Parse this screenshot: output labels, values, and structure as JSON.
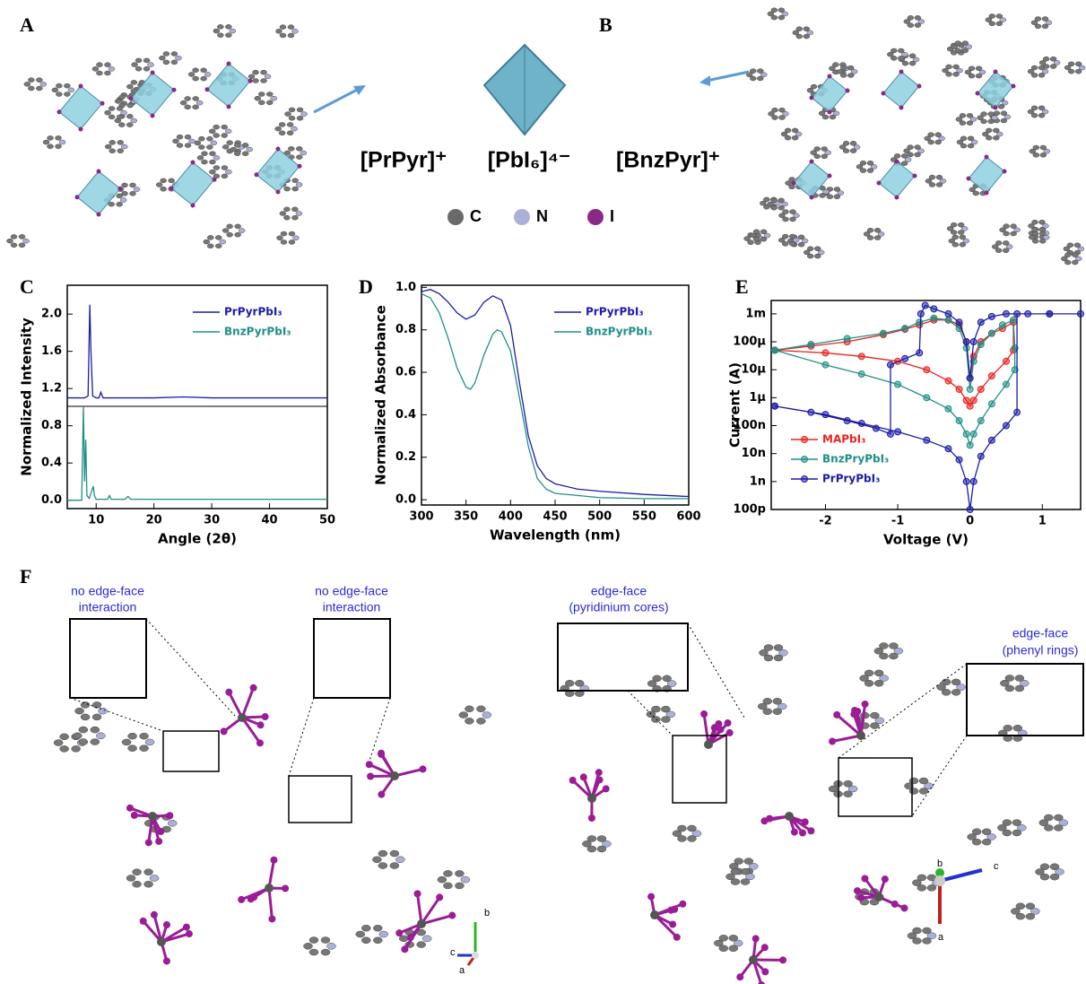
{
  "panel_labels": [
    "A",
    "B",
    "C",
    "D",
    "E",
    "F"
  ],
  "species": [
    "[PrPyr]⁺",
    "[PbI₆]⁴⁻",
    "[BnzPyr]⁺"
  ],
  "atom_legend": [
    "C",
    "N",
    "I"
  ],
  "annotations": [
    [
      "no edge-face",
      "interaction"
    ],
    [
      "no edge-face",
      "interaction"
    ],
    [
      "edge-face",
      "(pyridinium cores)"
    ],
    [
      "edge-face",
      "(phenyl rings)"
    ]
  ],
  "axis_triads": [
    [
      "b",
      "c",
      "a"
    ],
    [
      "b",
      "c",
      "a"
    ]
  ],
  "chart_data": [
    {
      "type": "line",
      "xlabel": "Angle (2θ)",
      "ylabel": "Normalized Intensity",
      "xlim": [
        5,
        50
      ],
      "ylim": [
        -0.09,
        2.31
      ],
      "xticks": [
        10,
        20,
        30,
        40,
        50
      ],
      "yticks": [
        {
          "value": 0,
          "label": "0.0"
        },
        0.4,
        0.8,
        1.2,
        1.6,
        {
          "value": 2,
          "label": "2.0"
        }
      ],
      "legend": "upper right",
      "series": [
        {
          "name": "PrPyrPbI₃",
          "color": "#1c1ca8",
          "x": [
            5,
            8,
            8.6,
            8.9,
            9.1,
            9.4,
            10,
            10.5,
            10.8,
            11.2,
            12,
            15,
            20,
            25,
            30,
            35,
            40,
            45,
            50
          ],
          "values": [
            1.1,
            1.1,
            1.12,
            2.1,
            1.6,
            1.12,
            1.1,
            1.1,
            1.16,
            1.1,
            1.1,
            1.1,
            1.1,
            1.11,
            1.1,
            1.1,
            1.1,
            1.1,
            1.1
          ]
        },
        {
          "name": "BnzPyrPbI₃",
          "color": "#1f8f86",
          "x": [
            5,
            7.5,
            7.8,
            8,
            8.2,
            8.4,
            8.8,
            9.5,
            9.7,
            10,
            12,
            12.3,
            12.6,
            15,
            15.5,
            16,
            20,
            25,
            30,
            35,
            40,
            45,
            50
          ],
          "values": [
            0,
            0,
            1.0,
            0.2,
            0.65,
            0.05,
            0.02,
            0.15,
            0.05,
            0.01,
            0.01,
            0.05,
            0.01,
            0.01,
            0.04,
            0.01,
            0.01,
            0.01,
            0.01,
            0.01,
            0.01,
            0.01,
            0.01
          ]
        }
      ]
    },
    {
      "type": "line",
      "xlabel": "Wavelength (nm)",
      "ylabel": "Normalized Absorbance",
      "xlim": [
        300,
        600
      ],
      "ylim": [
        -0.025,
        1.01
      ],
      "xticks": [
        300,
        350,
        400,
        450,
        500,
        550,
        600
      ],
      "yticks": [
        {
          "value": 0,
          "label": "0.0"
        },
        0.2,
        0.4,
        0.6,
        0.8,
        {
          "value": 1,
          "label": "1.0"
        }
      ],
      "legend": "upper right",
      "series": [
        {
          "name": "PrPyrPbI₃",
          "color": "#1c1ca8",
          "x": [
            300,
            310,
            320,
            330,
            340,
            350,
            360,
            370,
            380,
            390,
            400,
            410,
            420,
            430,
            440,
            450,
            475,
            500,
            550,
            600
          ],
          "values": [
            0.98,
            0.99,
            0.97,
            0.93,
            0.88,
            0.85,
            0.87,
            0.93,
            0.96,
            0.94,
            0.82,
            0.55,
            0.3,
            0.16,
            0.1,
            0.075,
            0.05,
            0.04,
            0.025,
            0.015
          ]
        },
        {
          "name": "BnzPyrPbI₃",
          "color": "#1f8f86",
          "x": [
            300,
            310,
            320,
            330,
            340,
            350,
            355,
            360,
            370,
            380,
            385,
            390,
            400,
            410,
            420,
            430,
            440,
            450,
            500,
            550,
            600
          ],
          "values": [
            0.97,
            0.95,
            0.88,
            0.76,
            0.62,
            0.53,
            0.52,
            0.55,
            0.68,
            0.78,
            0.8,
            0.79,
            0.7,
            0.48,
            0.25,
            0.1,
            0.05,
            0.03,
            0.01,
            0.005,
            0.005
          ]
        }
      ]
    },
    {
      "type": "line",
      "xlabel": "Voltage (V)",
      "ylabel": "Current (A)",
      "log_y": true,
      "markers": true,
      "xlim": [
        -2.75,
        1.53
      ],
      "ylim": [
        1e-10,
        0.003
      ],
      "xticks": [
        -2,
        -1,
        0,
        1
      ],
      "yticks": [
        {
          "value": 1e-10,
          "label": "100p"
        },
        {
          "value": 1e-09,
          "label": "1n"
        },
        {
          "value": 1e-08,
          "label": "10n"
        },
        {
          "value": 1e-07,
          "label": "100n"
        },
        {
          "value": 1e-06,
          "label": "1µ"
        },
        {
          "value": 1e-05,
          "label": "10µ"
        },
        {
          "value": 0.0001,
          "label": "100µ"
        },
        {
          "value": 0.001,
          "label": "1m"
        }
      ],
      "legend": "lower left",
      "series": [
        {
          "name": "MAPbI₃",
          "color": "#e8231f",
          "x": [
            -2.7,
            -2.2,
            -1.7,
            -1.2,
            -0.9,
            -0.7,
            -0.5,
            -0.3,
            -0.15,
            -0.05,
            0,
            0.05,
            0.15,
            0.3,
            0.45,
            0.6,
            0.6,
            0.5,
            0.3,
            0.15,
            0.05,
            0,
            -0.05,
            -0.15,
            -0.3,
            -0.6,
            -1,
            -1.5,
            -2,
            -2.7
          ],
          "values": [
            5e-05,
            7e-05,
            0.0001,
            0.00018,
            0.00028,
            0.0004,
            0.0006,
            0.0006,
            0.0004,
            0.0001,
            5e-06,
            3e-05,
            0.0001,
            0.0002,
            0.0003,
            0.0005,
            5e-05,
            2e-05,
            6e-06,
            2e-06,
            8e-07,
            5e-07,
            8e-07,
            2e-06,
            4e-06,
            1e-05,
            2e-05,
            3e-05,
            4e-05,
            5e-05
          ]
        },
        {
          "name": "BnzPryPbI₃",
          "color": "#1f8f86",
          "x": [
            -2.7,
            -2.2,
            -1.7,
            -1.2,
            -0.9,
            -0.7,
            -0.5,
            -0.3,
            -0.15,
            -0.05,
            0,
            0.05,
            0.15,
            0.3,
            0.45,
            0.6,
            0.62,
            0.62,
            0.5,
            0.3,
            0.15,
            0.05,
            0,
            -0.05,
            -0.15,
            -0.3,
            -0.6,
            -1,
            -1.5,
            -2,
            -2.7
          ],
          "values": [
            5e-05,
            8e-05,
            0.00013,
            0.0002,
            0.0003,
            0.0005,
            0.0007,
            0.0006,
            0.0003,
            6e-05,
            2e-06,
            2e-05,
            8e-05,
            0.0002,
            0.0004,
            0.0006,
            6e-05,
            1e-05,
            3e-06,
            6e-07,
            1.5e-07,
            5e-08,
            2e-08,
            5e-08,
            1.5e-07,
            4e-07,
            1e-06,
            3e-06,
            7e-06,
            1.5e-05,
            5e-05
          ]
        },
        {
          "name": "PrPryPbI₃",
          "color": "#1c1ca8",
          "x": [
            -2.7,
            -2.2,
            -1.7,
            -1.3,
            -1.1,
            -1.1,
            -0.9,
            -0.7,
            -0.68,
            -0.62,
            -0.5,
            -0.3,
            -0.15,
            -0.05,
            0,
            0.05,
            0.15,
            0.3,
            0.5,
            0.8,
            1.1,
            1.53,
            1.1,
            0.65,
            0.65,
            0.5,
            0.3,
            0.15,
            0.05,
            0,
            -0.05,
            -0.15,
            -0.3,
            -0.6,
            -1,
            -1.5,
            -2,
            -2.7
          ],
          "values": [
            5e-07,
            3e-07,
            1.5e-07,
            8e-08,
            5e-08,
            1.5e-05,
            2.5e-05,
            4e-05,
            0.001,
            0.002,
            0.0015,
            0.001,
            0.0005,
            0.0001,
            5e-06,
            0.0001,
            0.0005,
            0.0008,
            0.001,
            0.001,
            0.001,
            0.001,
            0.001,
            0.001,
            3e-07,
            1e-07,
            3e-08,
            8e-09,
            1e-09,
            1e-10,
            1e-09,
            6e-09,
            1.5e-08,
            3e-08,
            6e-08,
            1.2e-07,
            2.5e-07,
            5e-07
          ]
        }
      ]
    }
  ]
}
